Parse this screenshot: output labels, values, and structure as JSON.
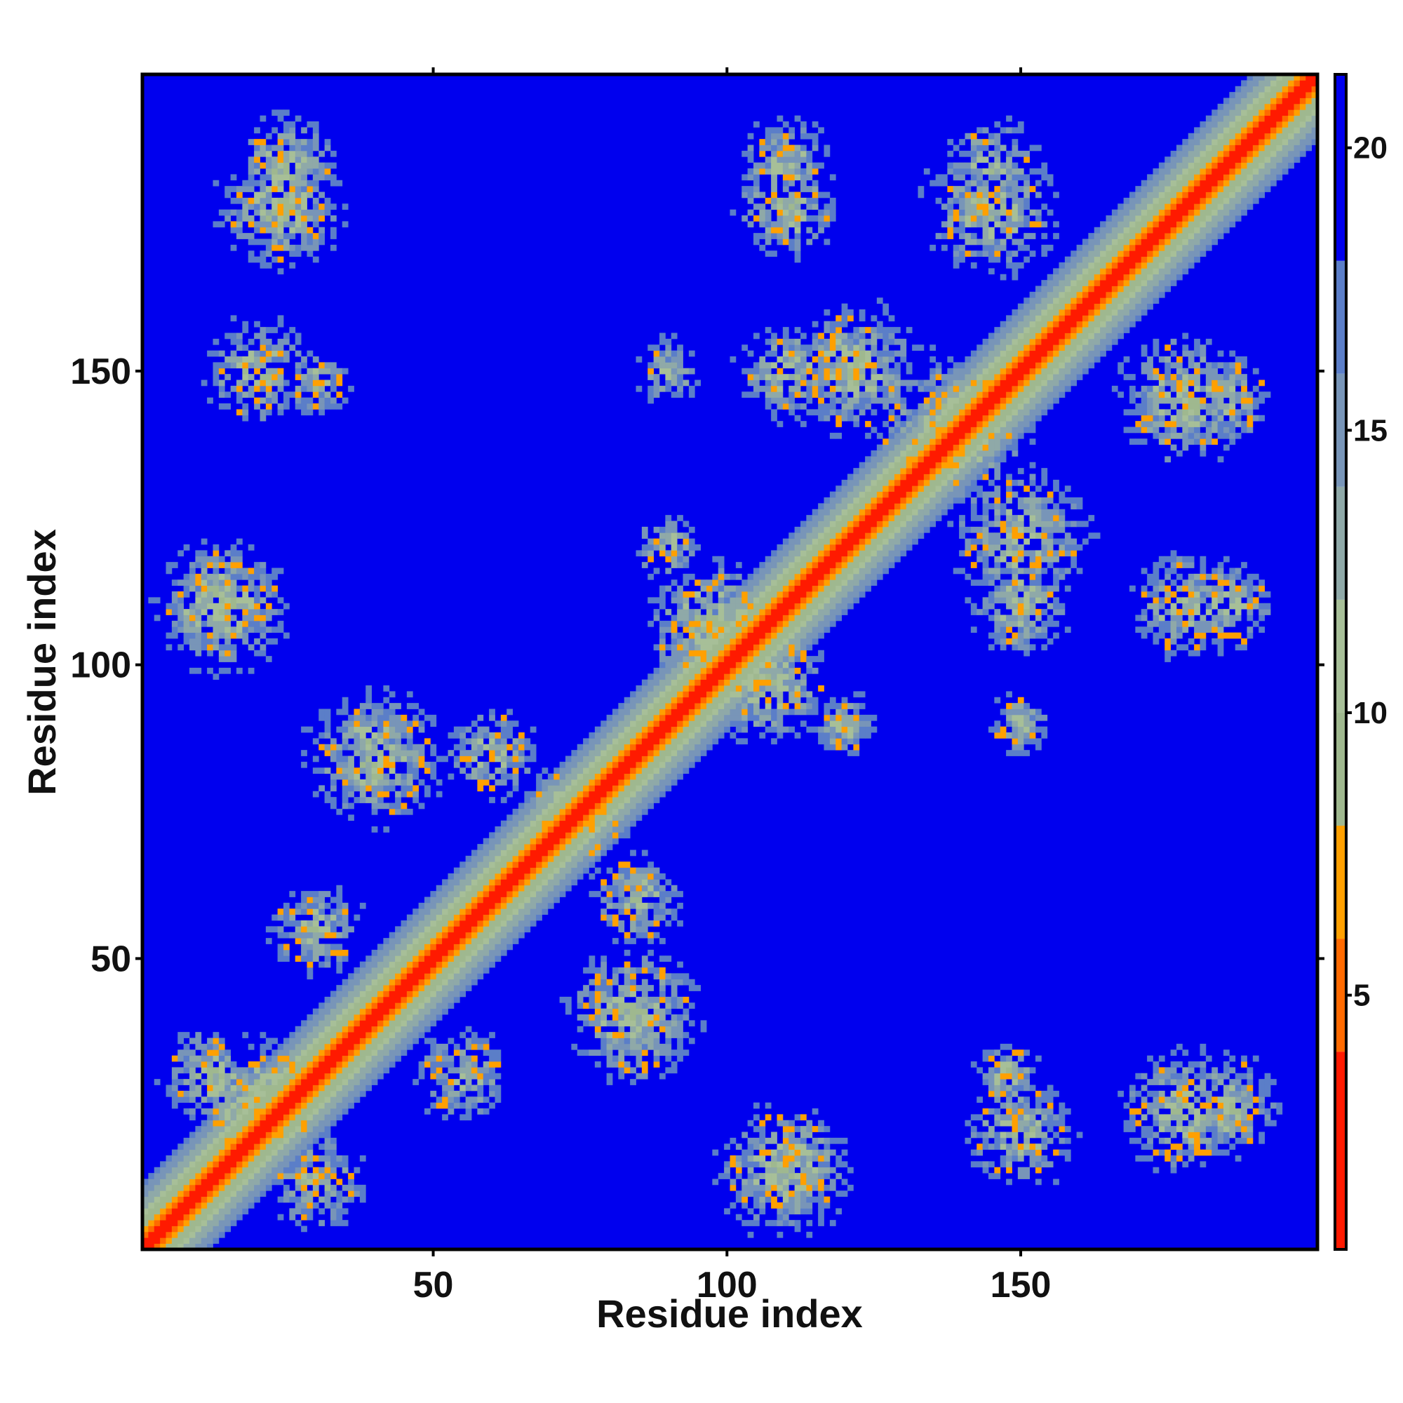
{
  "chart_data": {
    "type": "heatmap",
    "title": "",
    "xlabel": "Residue index",
    "ylabel": "Residue index",
    "n_residues": 200,
    "xlim": [
      1,
      200
    ],
    "ylim": [
      1,
      200
    ],
    "x_ticks": [
      50,
      100,
      150
    ],
    "y_ticks": [
      50,
      100,
      150
    ],
    "x_tick_labels": [
      "50",
      "100",
      "150"
    ],
    "y_tick_labels": [
      "50",
      "100",
      "150"
    ],
    "grid": false,
    "legend": "colorbar-right",
    "colorbar": {
      "range": [
        0.5,
        21.3
      ],
      "ticks": [
        5,
        10,
        15,
        20
      ],
      "tick_labels": [
        "5",
        "10",
        "15",
        "20"
      ],
      "colors": [
        {
          "from": 0.5,
          "to": 4.0,
          "color": "#ff1a00"
        },
        {
          "from": 4.0,
          "to": 6.0,
          "color": "#ff6a00"
        },
        {
          "from": 6.0,
          "to": 8.0,
          "color": "#ffa000"
        },
        {
          "from": 8.0,
          "to": 10.0,
          "color": "#9fb88f"
        },
        {
          "from": 10.0,
          "to": 12.0,
          "color": "#a7bf98"
        },
        {
          "from": 12.0,
          "to": 14.0,
          "color": "#8fa9a8"
        },
        {
          "from": 14.0,
          "to": 16.0,
          "color": "#7895b8"
        },
        {
          "from": 16.0,
          "to": 18.0,
          "color": "#5b7ec8"
        },
        {
          "from": 18.0,
          "to": 21.3,
          "color": "#0000ee"
        }
      ]
    },
    "clusters": [
      {
        "x": 107,
        "y": 97,
        "radius": 13,
        "value": 11
      },
      {
        "x": 97,
        "y": 107,
        "radius": 13,
        "value": 11
      },
      {
        "x": 14,
        "y": 110,
        "radius": 14,
        "value": 12
      },
      {
        "x": 110,
        "y": 14,
        "radius": 14,
        "value": 12
      },
      {
        "x": 40,
        "y": 84,
        "radius": 14,
        "value": 12
      },
      {
        "x": 84,
        "y": 40,
        "radius": 14,
        "value": 12
      },
      {
        "x": 24,
        "y": 178,
        "radius": 13,
        "value": 12
      },
      {
        "x": 178,
        "y": 24,
        "radius": 13,
        "value": 12
      },
      {
        "x": 20,
        "y": 150,
        "radius": 11,
        "value": 13
      },
      {
        "x": 150,
        "y": 20,
        "radius": 11,
        "value": 13
      },
      {
        "x": 110,
        "y": 178,
        "radius": 11,
        "value": 13
      },
      {
        "x": 178,
        "y": 110,
        "radius": 11,
        "value": 13
      },
      {
        "x": 145,
        "y": 178,
        "radius": 14,
        "value": 12
      },
      {
        "x": 178,
        "y": 145,
        "radius": 14,
        "value": 12
      },
      {
        "x": 122,
        "y": 150,
        "radius": 14,
        "value": 12
      },
      {
        "x": 150,
        "y": 122,
        "radius": 14,
        "value": 12
      },
      {
        "x": 138,
        "y": 140,
        "radius": 16,
        "value": 11
      },
      {
        "x": 150,
        "y": 110,
        "radius": 10,
        "value": 11
      },
      {
        "x": 110,
        "y": 150,
        "radius": 10,
        "value": 11
      },
      {
        "x": 60,
        "y": 85,
        "radius": 10,
        "value": 14
      },
      {
        "x": 85,
        "y": 60,
        "radius": 10,
        "value": 14
      },
      {
        "x": 20,
        "y": 25,
        "radius": 14,
        "value": 11
      },
      {
        "x": 30,
        "y": 12,
        "radius": 10,
        "value": 12
      },
      {
        "x": 12,
        "y": 30,
        "radius": 10,
        "value": 12
      },
      {
        "x": 55,
        "y": 30,
        "radius": 10,
        "value": 14
      },
      {
        "x": 30,
        "y": 55,
        "radius": 10,
        "value": 14
      },
      {
        "x": 90,
        "y": 150,
        "radius": 7,
        "value": 14
      },
      {
        "x": 150,
        "y": 90,
        "radius": 7,
        "value": 14
      },
      {
        "x": 90,
        "y": 120,
        "radius": 7,
        "value": 14
      },
      {
        "x": 120,
        "y": 90,
        "radius": 7,
        "value": 14
      },
      {
        "x": 185,
        "y": 110,
        "radius": 10,
        "value": 14
      },
      {
        "x": 110,
        "y": 185,
        "radius": 10,
        "value": 14
      },
      {
        "x": 185,
        "y": 145,
        "radius": 10,
        "value": 14
      },
      {
        "x": 145,
        "y": 185,
        "radius": 10,
        "value": 14
      },
      {
        "x": 185,
        "y": 25,
        "radius": 11,
        "value": 13
      },
      {
        "x": 25,
        "y": 185,
        "radius": 11,
        "value": 13
      },
      {
        "x": 148,
        "y": 30,
        "radius": 7,
        "value": 14
      },
      {
        "x": 30,
        "y": 148,
        "radius": 7,
        "value": 14
      },
      {
        "x": 72,
        "y": 75,
        "radius": 9,
        "value": 10
      },
      {
        "x": 75,
        "y": 72,
        "radius": 9,
        "value": 10
      }
    ]
  }
}
